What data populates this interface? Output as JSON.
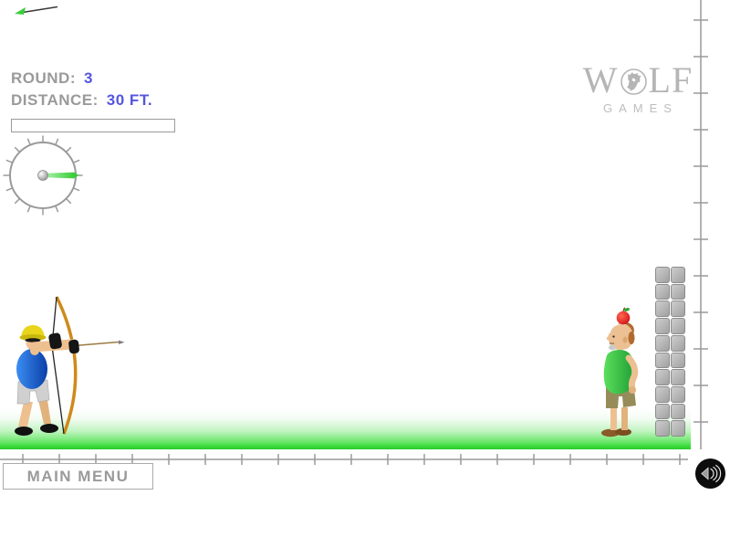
{
  "hud": {
    "round_label": "ROUND:",
    "round_value": "3",
    "distance_label": "DISTANCE:",
    "distance_value": "30 FT.",
    "power_fill_percent": 0
  },
  "logo": {
    "word_prefix": "W",
    "word_suffix": "LF",
    "subtitle": "GAMES"
  },
  "footer": {
    "main_menu_label": "MAIN MENU"
  },
  "colors": {
    "accent": "#5456de",
    "hud_gray": "#9a9a9a",
    "needle_green": "#33cc33",
    "ground_green": "#2bc92b",
    "apple_red": "#cc2222",
    "ruler_gray": "#999999"
  }
}
